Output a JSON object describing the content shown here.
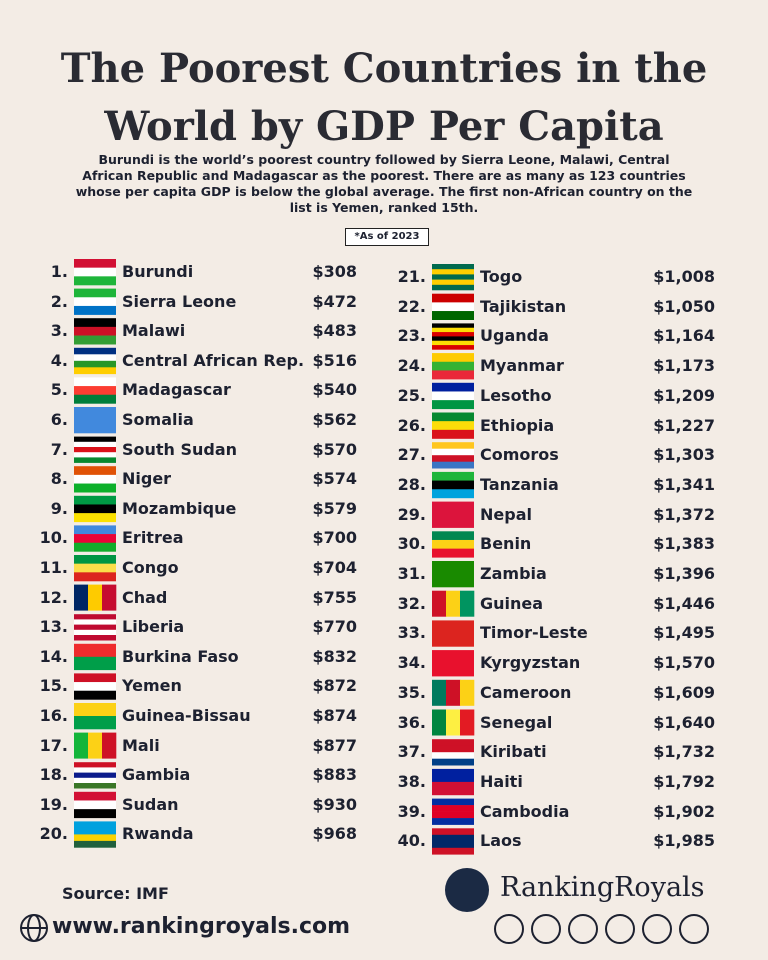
{
  "header": {
    "title": "The Poorest Countries in the World by GDP Per Capita",
    "subtitle": "Burundi is the world’s poorest country followed by Sierra Leone, Malawi, Central African Republic and Madagascar as the poorest. There are as many as 123 countries whose per capita GDP is below the global average. The first non-African country on the list is Yemen, ranked 15th.",
    "note": "*As of 2023"
  },
  "table": {
    "rows": [
      [
        "1.",
        "Burundi",
        "$308"
      ],
      [
        "2.",
        "Sierra Leone",
        "$472"
      ],
      [
        "3.",
        "Malawi",
        "$483"
      ],
      [
        "4.",
        "Central African Rep.",
        "$516"
      ],
      [
        "5.",
        "Madagascar",
        "$540"
      ],
      [
        "6.",
        "Somalia",
        "$562"
      ],
      [
        "7.",
        "South Sudan",
        "$570"
      ],
      [
        "8.",
        "Niger",
        "$574"
      ],
      [
        "9.",
        "Mozambique",
        "$579"
      ],
      [
        "10.",
        "Eritrea",
        "$700"
      ],
      [
        "11.",
        "Congo",
        "$704"
      ],
      [
        "12.",
        "Chad",
        "$755"
      ],
      [
        "13.",
        "Liberia",
        "$770"
      ],
      [
        "14.",
        "Burkina Faso",
        "$832"
      ],
      [
        "15.",
        "Yemen",
        "$872"
      ],
      [
        "16.",
        "Guinea-Bissau",
        "$874"
      ],
      [
        "17.",
        "Mali",
        "$877"
      ],
      [
        "18.",
        "Gambia",
        "$883"
      ],
      [
        "19.",
        "Sudan",
        "$930"
      ],
      [
        "20.",
        "Rwanda",
        "$968"
      ],
      [
        "21.",
        "Togo",
        "$1,008"
      ],
      [
        "22.",
        "Tajikistan",
        "$1,050"
      ],
      [
        "23.",
        "Uganda",
        "$1,164"
      ],
      [
        "24.",
        "Myanmar",
        "$1,173"
      ],
      [
        "25.",
        "Lesotho",
        "$1,209"
      ],
      [
        "26.",
        "Ethiopia",
        "$1,227"
      ],
      [
        "27.",
        "Comoros",
        "$1,303"
      ],
      [
        "28.",
        "Tanzania",
        "$1,341"
      ],
      [
        "29.",
        "Nepal",
        "$1,372"
      ],
      [
        "30.",
        "Benin",
        "$1,383"
      ],
      [
        "31.",
        "Zambia",
        "$1,396"
      ],
      [
        "32.",
        "Guinea",
        "$1,446"
      ],
      [
        "33.",
        "Timor-Leste",
        "$1,495"
      ],
      [
        "34.",
        "Kyrgyzstan",
        "$1,570"
      ],
      [
        "35.",
        "Cameroon",
        "$1,609"
      ],
      [
        "36.",
        "Senegal",
        "$1,640"
      ],
      [
        "37.",
        "Kiribati",
        "$1,732"
      ],
      [
        "38.",
        "Haiti",
        "$1,792"
      ],
      [
        "39.",
        "Cambodia",
        "$1,902"
      ],
      [
        "40.",
        "Laos",
        "$1,985"
      ]
    ]
  },
  "footer": {
    "source": "Source: IMF",
    "website": "www.rankingroyals.com",
    "brand": "RankingRoyals"
  }
}
